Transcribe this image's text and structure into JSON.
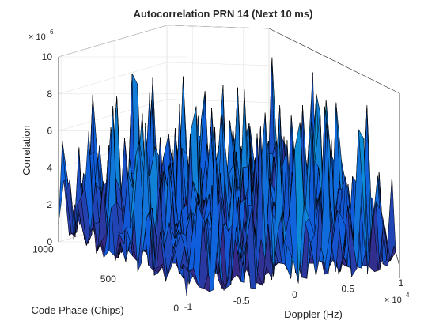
{
  "chart_data": {
    "type": "surface",
    "title": "Autocorrelation PRN 14 (Next 10 ms)",
    "xlabel": "Doppler (Hz)",
    "ylabel": "Code Phase (Chips)",
    "zlabel": "Correlation",
    "x_exponent": "× 10^4",
    "z_exponent": "× 10^6",
    "xlim": [
      -1,
      1
    ],
    "ylim": [
      0,
      1023
    ],
    "zlim": [
      0,
      10
    ],
    "x_ticks": [
      "-1",
      "-0.5",
      "0",
      "0.5",
      "1"
    ],
    "y_ticks": [
      "0",
      "500",
      "1000"
    ],
    "z_ticks": [
      "0",
      "2",
      "4",
      "6",
      "8",
      "10"
    ],
    "grid": true,
    "colormap": "parula",
    "edge_color": "#000000",
    "peak_description": "noise-like correlation surface, no distinct acquisition peak",
    "approx_max_correlation": 9.2,
    "approx_mean_correlation": 2.5
  }
}
